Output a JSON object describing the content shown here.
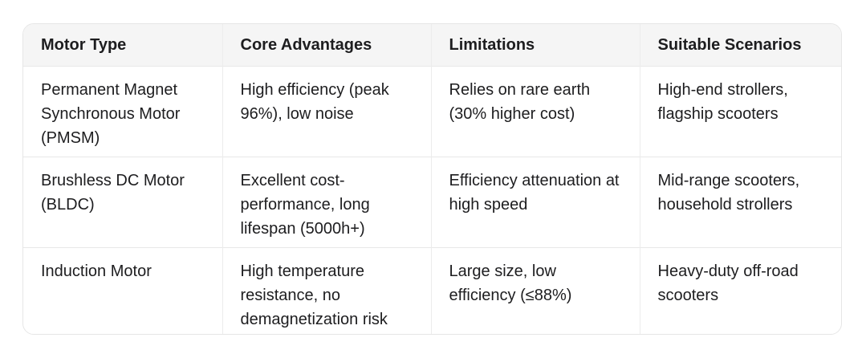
{
  "table": {
    "headers": [
      "Motor Type",
      "Core Advantages",
      "Limitations",
      "Suitable Scenarios"
    ],
    "rows": [
      [
        "Permanent Magnet Synchronous Motor (PMSM)",
        "High efficiency (peak 96%), low noise",
        "Relies on rare earth (30% higher cost)",
        "High-end strollers, flagship scooters"
      ],
      [
        "Brushless DC Motor (BLDC)",
        "Excellent cost-performance, long lifespan (5000h+)",
        "Efficiency attenuation at high speed",
        "Mid-range scooters, household strollers"
      ],
      [
        "Induction Motor",
        "High temperature resistance, no demagnetization risk",
        "Large size, low efficiency (≤88%)",
        "Heavy-duty off-road scooters"
      ]
    ]
  }
}
